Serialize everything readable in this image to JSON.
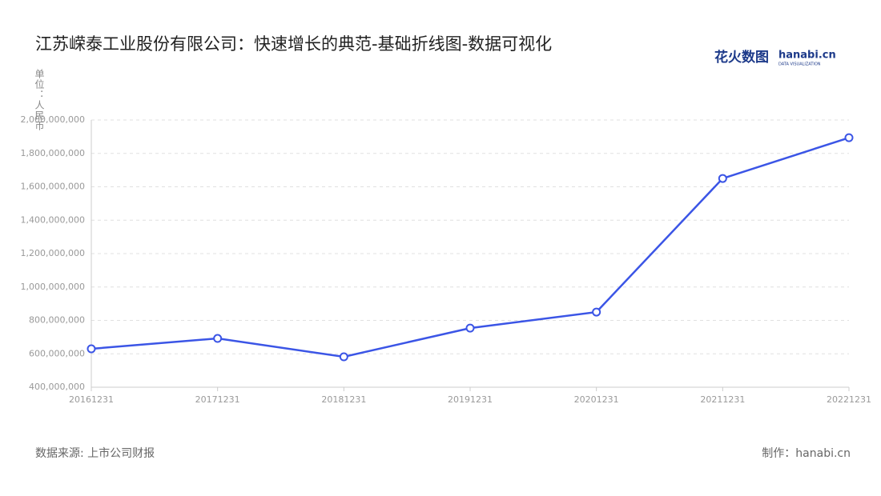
{
  "chart_data": {
    "type": "line",
    "title": "江苏嵘泰工业股份有限公司：快速增长的典范-基础折线图-数据可视化",
    "y_label": "单位：人民币",
    "categories": [
      "20161231",
      "20171231",
      "20181231",
      "20191231",
      "20201231",
      "20211231",
      "20221231"
    ],
    "series": [
      {
        "name": "江苏嵘泰工业股份有限公司",
        "color": "#3b55e6",
        "values": [
          630000000,
          692000000,
          582000000,
          754000000,
          850000000,
          1650000000,
          1894000000
        ]
      }
    ],
    "ylim": [
      400000000,
      2000000000
    ],
    "yticks": [
      {
        "value": 400000000,
        "label": "400,000,000"
      },
      {
        "value": 600000000,
        "label": "600,000,000"
      },
      {
        "value": 800000000,
        "label": "800,000,000"
      },
      {
        "value": 1000000000,
        "label": "1,000,000,000"
      },
      {
        "value": 1200000000,
        "label": "1,200,000,000"
      },
      {
        "value": 1400000000,
        "label": "1,400,000,000"
      },
      {
        "value": 1600000000,
        "label": "1,600,000,000"
      },
      {
        "value": 1800000000,
        "label": "1,800,000,000"
      },
      {
        "value": 2000000000,
        "label": "2,000,000,000"
      }
    ],
    "grid": true,
    "source": "数据来源: 上市公司财报",
    "credit": "制作：hanabi.cn",
    "logo": {
      "name": "花火数图",
      "brand": "hanabi.cn",
      "tagline": "DATA VISUALIZATION"
    }
  }
}
